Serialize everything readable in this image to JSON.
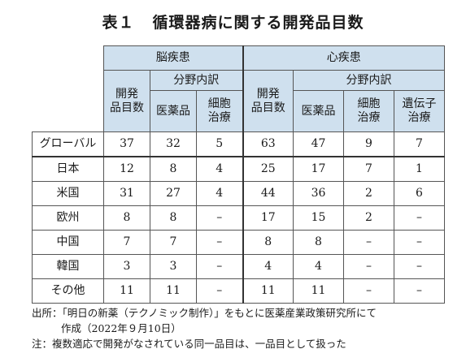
{
  "title": {
    "number": "表１",
    "text": "循環器病に関する開発品目数"
  },
  "table": {
    "groups": [
      {
        "label": "脳疾患",
        "total_label": [
          "開発",
          "品目数"
        ],
        "sub_header": "分野内訳",
        "sub_cols": [
          [
            "医薬品"
          ],
          [
            "細胞",
            "治療"
          ]
        ]
      },
      {
        "label": "心疾患",
        "total_label": [
          "開発",
          "品目数"
        ],
        "sub_header": "分野内訳",
        "sub_cols": [
          [
            "医薬品"
          ],
          [
            "細胞",
            "治療"
          ],
          [
            "遺伝子",
            "治療"
          ]
        ]
      }
    ],
    "rows": [
      {
        "label": "グローバル",
        "values": [
          "37",
          "32",
          "5",
          "63",
          "47",
          "9",
          "7"
        ]
      },
      {
        "label": "日本",
        "values": [
          "12",
          "8",
          "4",
          "25",
          "17",
          "7",
          "1"
        ]
      },
      {
        "label": "米国",
        "values": [
          "31",
          "27",
          "4",
          "44",
          "36",
          "2",
          "6"
        ]
      },
      {
        "label": "欧州",
        "values": [
          "8",
          "8",
          "–",
          "17",
          "15",
          "2",
          "–"
        ]
      },
      {
        "label": "中国",
        "values": [
          "7",
          "7",
          "–",
          "8",
          "8",
          "–",
          "–"
        ]
      },
      {
        "label": "韓国",
        "values": [
          "3",
          "3",
          "–",
          "4",
          "4",
          "–",
          "–"
        ]
      },
      {
        "label": "その他",
        "values": [
          "11",
          "11",
          "–",
          "11",
          "11",
          "–",
          "–"
        ]
      }
    ]
  },
  "notes": {
    "source_line1": "出所：「明日の新薬（テクノミック制作）」をもとに医薬産業政策研究所にて",
    "source_line2": "作成（2022年９月10日）",
    "note": "注：複数適応で開発がなされている同一品目は、一品目として扱った"
  },
  "colors": {
    "header_bg": "#cfe0ee",
    "border": "#555555"
  }
}
